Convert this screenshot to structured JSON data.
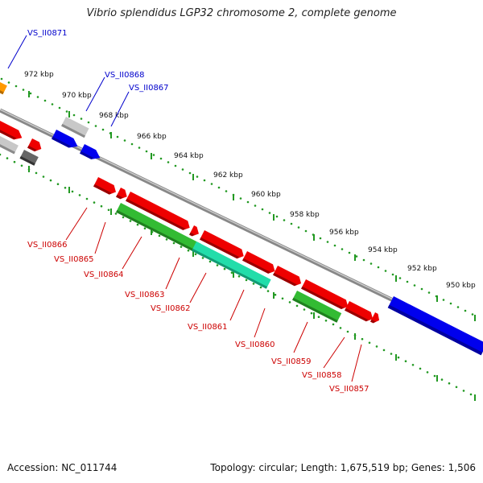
{
  "title": "Vibrio splendidus LGP32 chromosome 2, complete genome",
  "footer": {
    "accession": "Accession: NC_011744",
    "summary": "Topology: circular; Length: 1,675,519 bp; Genes: 1,506"
  },
  "colors": {
    "red": "#ee0000",
    "green": "#33bb33",
    "teal": "#22ddaa",
    "blue": "#0000ee",
    "gray": "#bbbbbb",
    "dark_gray": "#555555",
    "orange": "#ff9900",
    "backbone": "#888888",
    "tick_green": "#229922",
    "label_red": "#cc0000",
    "label_blue": "#0000cc"
  },
  "scale_labels": [
    "972 kbp",
    "970 kbp",
    "968 kbp",
    "966 kbp",
    "964 kbp",
    "962 kbp",
    "960 kbp",
    "958 kbp",
    "956 kbp",
    "954 kbp",
    "952 kbp",
    "950 kbp"
  ],
  "gene_labels_top": [
    "VS_II0871",
    "VS_II0868",
    "VS_II0867"
  ],
  "gene_labels_bottom": [
    "VS_II0866",
    "VS_II0865",
    "VS_II0864",
    "VS_II0863",
    "VS_II0862",
    "VS_II0861",
    "VS_II0860",
    "VS_II0859",
    "VS_II0858",
    "VS_II0857"
  ]
}
